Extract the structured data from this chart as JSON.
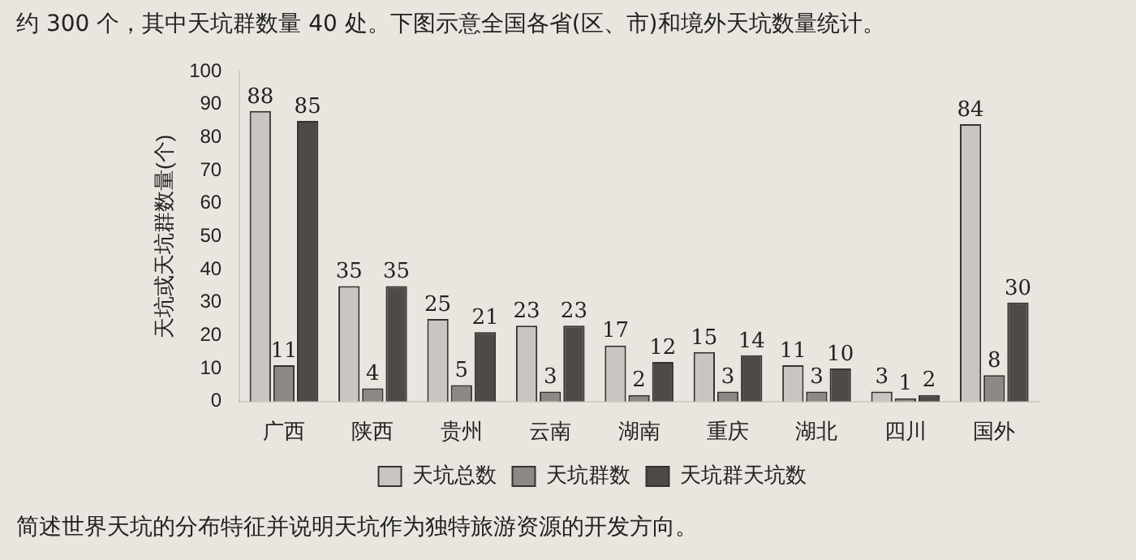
{
  "chart_data": {
    "type": "bar",
    "ylabel": "天坑或天坑群数量(个)",
    "annotations": [
      "约 300 个，其中天坑群数量 40 处。下图示意全国各省(区、市)和境外天坑数量统计。",
      "简述世界天坑的分布特征并说明天坑作为独特旅游资源的开发方向。"
    ],
    "categories": [
      "广西",
      "陕西",
      "贵州",
      "云南",
      "湖南",
      "重庆",
      "湖北",
      "四川",
      "国外"
    ],
    "series": [
      {
        "name": "天坑总数",
        "color": "#c9c5c1",
        "values": [
          88,
          35,
          25,
          23,
          17,
          15,
          11,
          3,
          84
        ]
      },
      {
        "name": "天坑群数",
        "color": "#8c8884",
        "values": [
          11,
          4,
          5,
          3,
          2,
          3,
          3,
          1,
          8
        ]
      },
      {
        "name": "天坑群天坑数",
        "color": "#4d4a48",
        "values": [
          85,
          35,
          21,
          23,
          12,
          14,
          10,
          2,
          30
        ]
      }
    ],
    "ylim": [
      0,
      100
    ],
    "yticks": [
      0,
      10,
      20,
      30,
      40,
      50,
      60,
      70,
      80,
      90,
      100
    ],
    "grid": false,
    "legend": "bottom",
    "data_labels": true
  }
}
